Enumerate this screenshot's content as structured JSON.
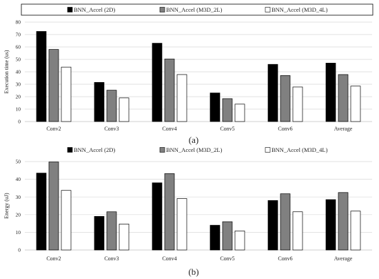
{
  "colors": {
    "series_2d": "#000000",
    "series_2l": "#808080",
    "series_4l": "#ffffff",
    "grid": "#d9d9d9",
    "outline": "#000000"
  },
  "chart_data": [
    {
      "type": "bar",
      "panel_label": "(a)",
      "ylabel": "Execution time (us)",
      "categories": [
        "Conv2",
        "Conv3",
        "Conv4",
        "Conv5",
        "Conv6",
        "Average"
      ],
      "ylim": [
        0,
        80
      ],
      "yticks": [
        0,
        10,
        20,
        30,
        40,
        50,
        60,
        70,
        80
      ],
      "grid": true,
      "legend": "top",
      "series": [
        {
          "name": "BNN_Accel (2D)",
          "color": "#000000",
          "values": [
            72.5,
            31.5,
            63,
            23,
            46,
            47
          ]
        },
        {
          "name": "BNN_Accel (M3D_2L)",
          "color": "#808080",
          "values": [
            58,
            25.2,
            50.3,
            18.4,
            37,
            37.8
          ]
        },
        {
          "name": "BNN_Accel (M3D_4L)",
          "color": "#ffffff",
          "values": [
            43.8,
            19,
            37.8,
            14,
            27.8,
            28.5
          ]
        }
      ]
    },
    {
      "type": "bar",
      "panel_label": "(b)",
      "ylabel": "Energy (uJ)",
      "categories": [
        "Conv2",
        "Conv3",
        "Conv4",
        "Conv5",
        "Conv6",
        "Average"
      ],
      "ylim": [
        0,
        50
      ],
      "yticks": [
        0,
        10,
        20,
        30,
        40,
        50
      ],
      "grid": true,
      "legend": "top",
      "series": [
        {
          "name": "BNN_Accel (2D)",
          "color": "#000000",
          "values": [
            43.5,
            19,
            38,
            14,
            28,
            28.5
          ]
        },
        {
          "name": "BNN_Accel (M3D_2L)",
          "color": "#808080",
          "values": [
            49.8,
            21.6,
            43.2,
            16,
            31.8,
            32.5
          ]
        },
        {
          "name": "BNN_Accel (M3D_4L)",
          "color": "#ffffff",
          "values": [
            33.7,
            14.7,
            29.1,
            10.8,
            21.6,
            22
          ]
        }
      ]
    }
  ]
}
